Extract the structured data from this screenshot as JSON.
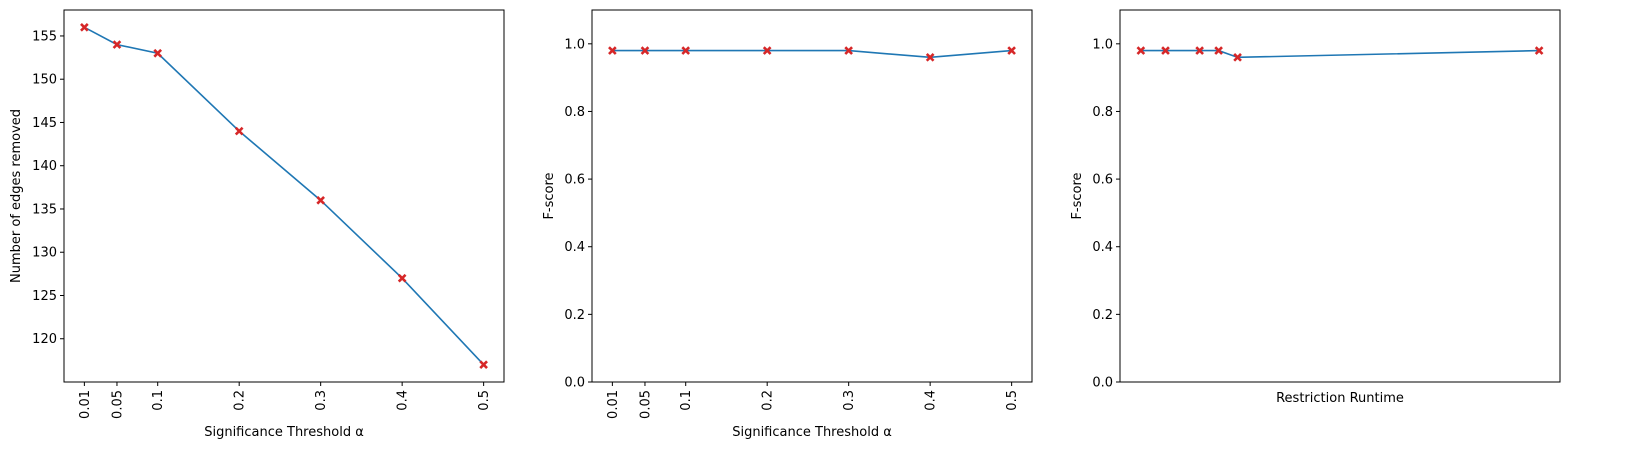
{
  "chart_data": [
    {
      "type": "line",
      "x": [
        0.01,
        0.05,
        0.1,
        0.2,
        0.3,
        0.4,
        0.5
      ],
      "x_tick_labels": [
        "0.01",
        "0.05",
        "0.1",
        "0.2",
        "0.3",
        "0.4",
        "0.5"
      ],
      "x_ticks_rotated": true,
      "series": [
        {
          "values": [
            156,
            154,
            153,
            144,
            136,
            127,
            117
          ]
        }
      ],
      "xlabel": "Significance Threshold α",
      "ylabel": "Number of edges removed",
      "xlim": [
        -0.015,
        0.525
      ],
      "ylim": [
        115,
        158
      ],
      "yticks": [
        120,
        125,
        130,
        135,
        140,
        145,
        150,
        155
      ],
      "grid": false
    },
    {
      "type": "line",
      "x": [
        0.01,
        0.05,
        0.1,
        0.2,
        0.3,
        0.4,
        0.5
      ],
      "x_tick_labels": [
        "0.01",
        "0.05",
        "0.1",
        "0.2",
        "0.3",
        "0.4",
        "0.5"
      ],
      "x_ticks_rotated": true,
      "series": [
        {
          "values": [
            0.98,
            0.98,
            0.98,
            0.98,
            0.98,
            0.96,
            0.98
          ]
        }
      ],
      "xlabel": "Significance Threshold α",
      "ylabel": "F-score",
      "xlim": [
        -0.015,
        0.525
      ],
      "ylim": [
        0,
        1.1
      ],
      "yticks": [
        0.0,
        0.2,
        0.4,
        0.6,
        0.8,
        1.0
      ],
      "grid": false
    },
    {
      "type": "line",
      "x": [
        0.5,
        1.8,
        3.6,
        4.6,
        5.6,
        21.5
      ],
      "x_tick_labels": [],
      "series": [
        {
          "values": [
            0.98,
            0.98,
            0.98,
            0.98,
            0.96,
            0.98
          ]
        }
      ],
      "xlabel": "Restriction Runtime",
      "ylabel": "F-score",
      "xlim": [
        -0.6,
        22.6
      ],
      "ylim": [
        0,
        1.1
      ],
      "yticks": [
        0.0,
        0.2,
        0.4,
        0.6,
        0.8,
        1.0
      ],
      "grid": false
    }
  ],
  "colors": {
    "line": "#1f77b4",
    "marker": "#d62728"
  }
}
